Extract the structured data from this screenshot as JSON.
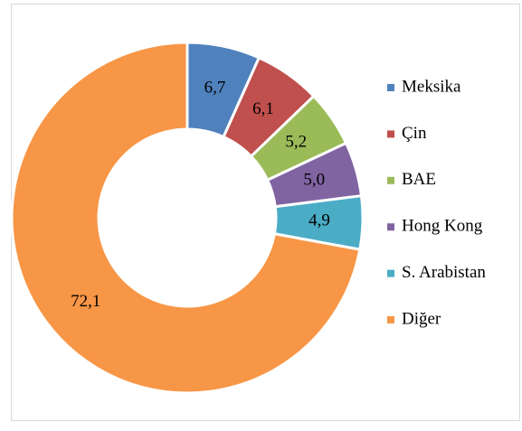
{
  "chart_data": {
    "type": "donut",
    "categories": [
      "Meksika",
      "Çin",
      "BAE",
      "Hong Kong",
      "S. Arabistan",
      "Diğer"
    ],
    "values": [
      6.7,
      6.1,
      5.2,
      5.0,
      4.9,
      72.1
    ],
    "value_labels": [
      "6,7",
      "6,1",
      "5,2",
      "5,0",
      "4,9",
      "72,1"
    ],
    "colors": [
      "#4f81bd",
      "#c0504d",
      "#9bbb59",
      "#8064a2",
      "#4bacc6",
      "#f79646"
    ],
    "legend": "right"
  }
}
